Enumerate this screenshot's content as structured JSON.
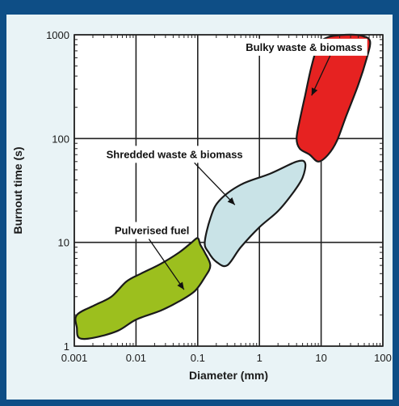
{
  "chart_data": {
    "type": "area",
    "title": "",
    "xlabel": "Diameter (mm)",
    "ylabel": "Burnout time (s)",
    "x_scale": "log",
    "y_scale": "log",
    "xlim": [
      0.001,
      100
    ],
    "ylim": [
      1,
      1000
    ],
    "x_ticks": [
      {
        "value": 0.001,
        "label": "0.001"
      },
      {
        "value": 0.01,
        "label": "0.01"
      },
      {
        "value": 0.1,
        "label": "0.1"
      },
      {
        "value": 1,
        "label": "1"
      },
      {
        "value": 10,
        "label": "10"
      },
      {
        "value": 100,
        "label": "100"
      }
    ],
    "y_ticks": [
      {
        "value": 1,
        "label": "1"
      },
      {
        "value": 10,
        "label": "10"
      },
      {
        "value": 100,
        "label": "100"
      },
      {
        "value": 1000,
        "label": "1000"
      }
    ],
    "grid": true,
    "regions": [
      {
        "label": "Pulverised fuel",
        "color": "#9cbf1e",
        "label_at": [
          0.0045,
          12
        ],
        "arrow_to": [
          0.06,
          3.5
        ],
        "outline": [
          [
            0.0012,
            1.2
          ],
          [
            0.0011,
            1.5
          ],
          [
            0.0011,
            2.0
          ],
          [
            0.0022,
            2.5
          ],
          [
            0.004,
            3.0
          ],
          [
            0.007,
            4.2
          ],
          [
            0.012,
            5.0
          ],
          [
            0.025,
            6.2
          ],
          [
            0.05,
            8.0
          ],
          [
            0.08,
            10.0
          ],
          [
            0.1,
            11.0
          ],
          [
            0.11,
            9.5
          ],
          [
            0.13,
            8.0
          ],
          [
            0.16,
            6.0
          ],
          [
            0.13,
            4.6
          ],
          [
            0.09,
            3.4
          ],
          [
            0.05,
            2.7
          ],
          [
            0.025,
            2.2
          ],
          [
            0.01,
            1.8
          ],
          [
            0.005,
            1.4
          ],
          [
            0.002,
            1.2
          ]
        ]
      },
      {
        "label": "Shredded waste & biomass",
        "color": "#c9e3e7",
        "label_at": [
          0.0033,
          65
        ],
        "arrow_to": [
          0.4,
          23
        ],
        "outline": [
          [
            0.13,
            10.0
          ],
          [
            0.16,
            17.0
          ],
          [
            0.22,
            25.0
          ],
          [
            0.5,
            36.0
          ],
          [
            1.5,
            46.0
          ],
          [
            4.0,
            60.0
          ],
          [
            5.5,
            58.0
          ],
          [
            5.0,
            42.0
          ],
          [
            3.5,
            30.0
          ],
          [
            2.0,
            20.0
          ],
          [
            1.0,
            14.0
          ],
          [
            0.5,
            9.0
          ],
          [
            0.3,
            6.0
          ],
          [
            0.2,
            6.5
          ],
          [
            0.15,
            8.0
          ]
        ]
      },
      {
        "label": "Bulky waste & biomass",
        "color": "#e62221",
        "label_at": [
          0.6,
          700
        ],
        "arrow_to": [
          7.0,
          260
        ],
        "outline": [
          [
            4.0,
            100.0
          ],
          [
            4.5,
            150.0
          ],
          [
            5.5,
            260.0
          ],
          [
            7.0,
            500.0
          ],
          [
            9.0,
            800.0
          ],
          [
            13.0,
            950.0
          ],
          [
            25.0,
            1000.0
          ],
          [
            45.0,
            980.0
          ],
          [
            62.0,
            870.0
          ],
          [
            55.0,
            600.0
          ],
          [
            40.0,
            330.0
          ],
          [
            25.0,
            160.0
          ],
          [
            18.0,
            95.0
          ],
          [
            13.0,
            70.0
          ],
          [
            9.0,
            60.0
          ],
          [
            6.5,
            70.0
          ],
          [
            4.5,
            80.0
          ]
        ]
      }
    ]
  },
  "colors": {
    "frame_blue": "#0e4e86",
    "panel_bg": "#e9f3f6",
    "plot_bg": "#ffffff"
  }
}
